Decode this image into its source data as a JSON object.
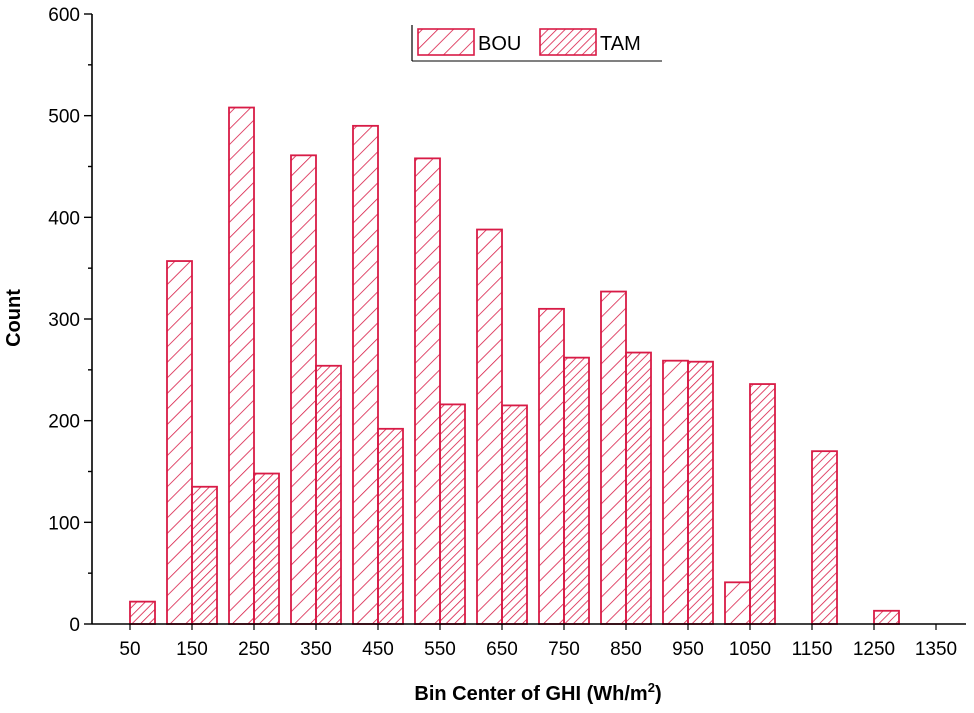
{
  "chart_data": {
    "type": "bar",
    "title": "",
    "xlabel": "Bin Center of GHI (Wh/m",
    "xlabel_superscript": "2",
    "xlabel_suffix": ")",
    "ylabel": "Count",
    "ylim": [
      0,
      600
    ],
    "yticks": [
      "0",
      "100",
      "200",
      "300",
      "400",
      "500",
      "600"
    ],
    "categories": [
      "50",
      "150",
      "250",
      "350",
      "450",
      "550",
      "650",
      "750",
      "850",
      "950",
      "1050",
      "1150",
      "1250",
      "1350"
    ],
    "series": [
      {
        "name": "BOU",
        "values": [
          0,
          357,
          508,
          461,
          490,
          458,
          388,
          310,
          327,
          259,
          41,
          0,
          0,
          0
        ]
      },
      {
        "name": "TAM",
        "values": [
          22,
          135,
          148,
          254,
          192,
          216,
          215,
          262,
          267,
          258,
          236,
          170,
          13,
          0
        ]
      }
    ],
    "legend_position": "top-center",
    "colors": {
      "bar_stroke": "#d81b46",
      "axis": "#000000"
    }
  }
}
